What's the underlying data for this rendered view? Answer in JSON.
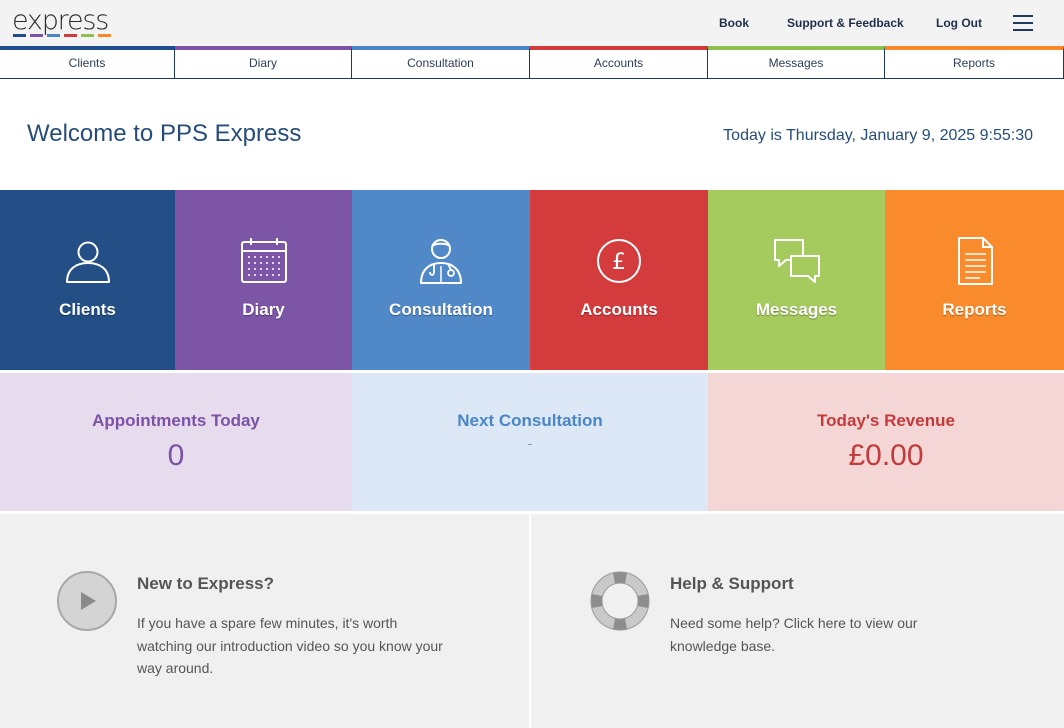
{
  "header": {
    "logo": "express",
    "logo_dash_colors": [
      "#1f4e8c",
      "#7b52a6",
      "#4a86c5",
      "#d23b3b",
      "#8cc152",
      "#f7892b"
    ],
    "links": {
      "book": "Book",
      "support": "Support & Feedback",
      "logout": "Log Out"
    },
    "menu_icon": "hamburger-icon"
  },
  "tabs": [
    {
      "label": "Clients",
      "color": "#1f4e8c"
    },
    {
      "label": "Diary",
      "color": "#7b52a6"
    },
    {
      "label": "Consultation",
      "color": "#4a86c5"
    },
    {
      "label": "Accounts",
      "color": "#d23b3b"
    },
    {
      "label": "Messages",
      "color": "#8cc152"
    },
    {
      "label": "Reports",
      "color": "#f7892b"
    }
  ],
  "welcome": {
    "title": "Welcome to PPS Express",
    "today": "Today is Thursday, January 9, 2025 9:55:30"
  },
  "tiles": [
    {
      "label": "Clients",
      "icon": "user-icon",
      "color": "#234f86"
    },
    {
      "label": "Diary",
      "icon": "calendar-icon",
      "color": "#7c55a6"
    },
    {
      "label": "Consultation",
      "icon": "doctor-icon",
      "color": "#5188c8"
    },
    {
      "label": "Accounts",
      "icon": "pound-coin-icon",
      "color": "#d33b3d"
    },
    {
      "label": "Messages",
      "icon": "chat-bubbles-icon",
      "color": "#a5ca5e"
    },
    {
      "label": "Reports",
      "icon": "document-icon",
      "color": "#f98b2c"
    }
  ],
  "stats": {
    "appointments": {
      "label": "Appointments Today",
      "value": "0",
      "color": "#7b52a6",
      "bg": "#e6dcee"
    },
    "next_consultation": {
      "label": "Next Consultation",
      "value": "-",
      "color": "#4a86c5",
      "bg": "#dce8f5"
    },
    "revenue": {
      "label": "Today's Revenue",
      "value": "£0.00",
      "color": "#c43a3a",
      "bg": "#f4d6d6"
    }
  },
  "panels": {
    "new": {
      "title": "New to Express?",
      "text": "If you have a spare few minutes, it's worth watching our introduction video so you know your way around.",
      "icon": "play-icon"
    },
    "help": {
      "title": "Help & Support",
      "text": "Need some help? Click here to view our knowledge base.",
      "icon": "lifebuoy-icon"
    }
  }
}
